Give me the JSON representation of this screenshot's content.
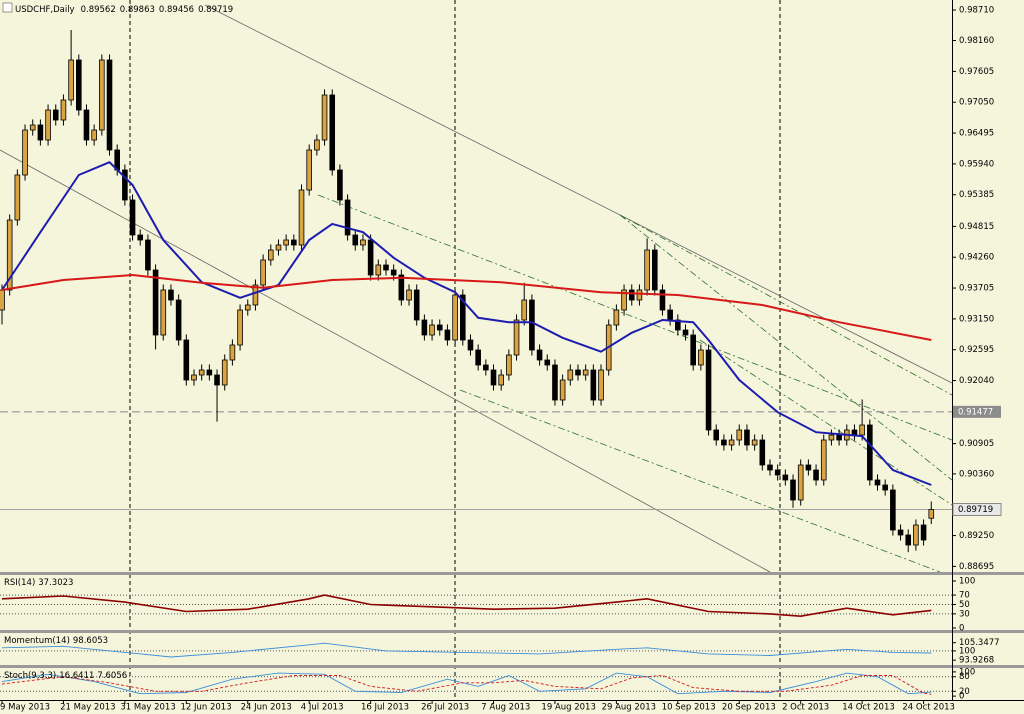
{
  "chart_data": {
    "type": "candlestick",
    "title": "USDCHF,Daily",
    "up_color": "#d9a441",
    "down_color": "#000000",
    "open": [
      0.9331,
      0.9367,
      0.9493,
      0.9574,
      0.9655,
      0.9664,
      0.9637,
      0.9691,
      0.9673,
      0.9709,
      0.9781,
      0.9691,
      0.9637,
      0.9655,
      0.9781,
      0.9619,
      0.9583,
      0.9529,
      0.9466,
      0.9457,
      0.9403,
      0.9286,
      0.9367,
      0.9349,
      0.9277,
      0.9205,
      0.9214,
      0.9223,
      0.9214,
      0.9196,
      0.9241,
      0.9268,
      0.9331,
      0.934,
      0.9376,
      0.9421,
      0.9439,
      0.9448,
      0.9457,
      0.9448,
      0.9547,
      0.9619,
      0.9637,
      0.9718,
      0.9583,
      0.9529,
      0.9466,
      0.9448,
      0.9457,
      0.9394,
      0.9412,
      0.9403,
      0.9394,
      0.9349,
      0.9367,
      0.9313,
      0.9286,
      0.9304,
      0.9295,
      0.9277,
      0.9358,
      0.9277,
      0.9259,
      0.9232,
      0.9223,
      0.9196,
      0.9214,
      0.925,
      0.9313,
      0.9349,
      0.9259,
      0.9241,
      0.9232,
      0.9169,
      0.9205,
      0.9223,
      0.9214,
      0.9223,
      0.9169,
      0.9223,
      0.9304,
      0.9331,
      0.9367,
      0.9349,
      0.9367,
      0.9439,
      0.9367,
      0.9331,
      0.9313,
      0.9295,
      0.9286,
      0.9232,
      0.9259,
      0.9115,
      0.9097,
      0.9088,
      0.9097,
      0.9115,
      0.9088,
      0.9097,
      0.9052,
      0.9043,
      0.9034,
      0.9025,
      0.8989,
      0.9052,
      0.9043,
      0.9025,
      0.9097,
      0.9106,
      0.9097,
      0.9115,
      0.9106,
      0.9124,
      0.9025,
      0.9016,
      0.9007,
      0.8935,
      0.8926,
      0.8908,
      0.8944,
      0.89562
    ],
    "high": [
      0.9377,
      0.9503,
      0.9584,
      0.9665,
      0.9674,
      0.9674,
      0.9701,
      0.9701,
      0.9719,
      0.9835,
      0.9791,
      0.9701,
      0.9665,
      0.9791,
      0.9791,
      0.9629,
      0.9593,
      0.9539,
      0.9476,
      0.9467,
      0.9413,
      0.9377,
      0.9377,
      0.9359,
      0.9287,
      0.9224,
      0.9233,
      0.9233,
      0.9224,
      0.9251,
      0.9278,
      0.9341,
      0.935,
      0.9386,
      0.9431,
      0.9449,
      0.9458,
      0.9467,
      0.9467,
      0.9557,
      0.9629,
      0.9647,
      0.9728,
      0.9728,
      0.9593,
      0.9539,
      0.9476,
      0.9467,
      0.9467,
      0.9422,
      0.9422,
      0.9413,
      0.9404,
      0.9377,
      0.9377,
      0.9323,
      0.9314,
      0.9314,
      0.9305,
      0.9368,
      0.9368,
      0.9287,
      0.9269,
      0.9242,
      0.9233,
      0.9224,
      0.926,
      0.9323,
      0.938,
      0.9359,
      0.9269,
      0.9251,
      0.9242,
      0.9215,
      0.9233,
      0.9233,
      0.9233,
      0.9233,
      0.9233,
      0.9314,
      0.9341,
      0.9377,
      0.9377,
      0.9377,
      0.946,
      0.9449,
      0.9377,
      0.9341,
      0.9323,
      0.9305,
      0.9296,
      0.9269,
      0.9269,
      0.9125,
      0.9107,
      0.9107,
      0.9125,
      0.9125,
      0.9107,
      0.9107,
      0.9062,
      0.9053,
      0.9044,
      0.9035,
      0.9062,
      0.9062,
      0.9053,
      0.9107,
      0.9116,
      0.9116,
      0.9125,
      0.9125,
      0.917,
      0.9134,
      0.9035,
      0.9026,
      0.9017,
      0.8945,
      0.8936,
      0.8954,
      0.8954,
      0.89863
    ],
    "low": [
      0.9305,
      0.9357,
      0.9483,
      0.9564,
      0.9645,
      0.9627,
      0.9627,
      0.9663,
      0.9663,
      0.9699,
      0.9681,
      0.9627,
      0.9627,
      0.9645,
      0.9609,
      0.9573,
      0.9519,
      0.9456,
      0.9447,
      0.9393,
      0.926,
      0.9276,
      0.9339,
      0.9267,
      0.9195,
      0.9195,
      0.9204,
      0.9204,
      0.913,
      0.9186,
      0.9231,
      0.9258,
      0.9321,
      0.933,
      0.9366,
      0.9411,
      0.9429,
      0.9438,
      0.9438,
      0.9438,
      0.9537,
      0.9609,
      0.9627,
      0.9573,
      0.9519,
      0.9456,
      0.9438,
      0.9438,
      0.9384,
      0.9384,
      0.9393,
      0.9384,
      0.9339,
      0.9339,
      0.9303,
      0.9276,
      0.9276,
      0.9285,
      0.9267,
      0.9267,
      0.9267,
      0.9249,
      0.9222,
      0.9213,
      0.9186,
      0.9186,
      0.9204,
      0.924,
      0.9303,
      0.9249,
      0.9231,
      0.9222,
      0.9159,
      0.9159,
      0.9195,
      0.9204,
      0.9204,
      0.9159,
      0.9159,
      0.9213,
      0.9294,
      0.9321,
      0.9339,
      0.9339,
      0.9357,
      0.9357,
      0.9321,
      0.9303,
      0.9285,
      0.9276,
      0.9222,
      0.9222,
      0.9105,
      0.9087,
      0.9078,
      0.9078,
      0.9087,
      0.9078,
      0.9078,
      0.9042,
      0.9033,
      0.9024,
      0.9015,
      0.8975,
      0.8979,
      0.9033,
      0.9015,
      0.9015,
      0.9087,
      0.9087,
      0.9087,
      0.9096,
      0.9096,
      0.9015,
      0.9006,
      0.8997,
      0.8925,
      0.8916,
      0.8895,
      0.8898,
      0.8907,
      0.89456
    ],
    "close": [
      0.9367,
      0.9493,
      0.9574,
      0.9655,
      0.9664,
      0.9637,
      0.9691,
      0.9673,
      0.9709,
      0.9781,
      0.9691,
      0.9637,
      0.9655,
      0.9781,
      0.9619,
      0.9583,
      0.9529,
      0.9466,
      0.9457,
      0.9403,
      0.9286,
      0.9367,
      0.9349,
      0.9277,
      0.9205,
      0.9214,
      0.9223,
      0.9214,
      0.9196,
      0.9241,
      0.9268,
      0.9331,
      0.934,
      0.9376,
      0.9421,
      0.9439,
      0.9448,
      0.9457,
      0.9448,
      0.9547,
      0.9619,
      0.9637,
      0.9718,
      0.9583,
      0.9529,
      0.9466,
      0.9448,
      0.9457,
      0.9394,
      0.9412,
      0.9403,
      0.9394,
      0.9349,
      0.9367,
      0.9313,
      0.9286,
      0.9304,
      0.9295,
      0.9277,
      0.9358,
      0.9277,
      0.9259,
      0.9232,
      0.9223,
      0.9196,
      0.9214,
      0.925,
      0.9313,
      0.9349,
      0.9259,
      0.9241,
      0.9232,
      0.9169,
      0.9205,
      0.9223,
      0.9214,
      0.9223,
      0.9169,
      0.9223,
      0.9304,
      0.9331,
      0.9367,
      0.9349,
      0.9367,
      0.9439,
      0.9367,
      0.9331,
      0.9313,
      0.9295,
      0.9286,
      0.9232,
      0.9259,
      0.9115,
      0.9097,
      0.9088,
      0.9097,
      0.9115,
      0.9088,
      0.9097,
      0.9052,
      0.9043,
      0.9034,
      0.9025,
      0.8989,
      0.9052,
      0.9043,
      0.9025,
      0.9097,
      0.9106,
      0.9097,
      0.9115,
      0.9106,
      0.9124,
      0.9025,
      0.9016,
      0.9007,
      0.8935,
      0.8926,
      0.8908,
      0.8944,
      0.8917,
      0.89719
    ],
    "xlim": [
      -0.26,
      123.7
    ],
    "ylim": [
      0.88594,
      0.9889
    ],
    "yticks": [
      {
        "value": 0.9871,
        "label": "0.98710"
      },
      {
        "value": 0.9816,
        "label": "0.98160"
      },
      0.97605,
      {
        "value": 0.9705,
        "label": "0.97050"
      },
      0.96495,
      {
        "value": 0.9594,
        "label": "0.95940"
      },
      0.95385,
      0.94815,
      {
        "value": 0.9426,
        "label": "0.94260"
      },
      0.93705,
      {
        "value": 0.9315,
        "label": "0.93150"
      },
      0.92595,
      {
        "value": 0.9204,
        "label": "0.92040"
      },
      0.90905,
      {
        "value": 0.9036,
        "label": "0.90360"
      },
      {
        "value": 0.8925,
        "label": "0.89250"
      },
      0.88695
    ],
    "xticks": [
      {
        "value": 0,
        "label": "9 May 2013"
      },
      {
        "value": 8,
        "label": "21 May 2013"
      },
      {
        "value": 16,
        "label": "31 May 2013"
      },
      {
        "value": 24,
        "label": "12 Jun 2013"
      },
      {
        "value": 32,
        "label": "24 Jun 2013"
      },
      {
        "value": 40,
        "label": "4 Jul 2013"
      },
      {
        "value": 48,
        "label": "16 Jul 2013"
      },
      {
        "value": 56,
        "label": "26 Jul 2013"
      },
      {
        "value": 64,
        "label": "7 Aug 2013"
      },
      {
        "value": 72,
        "label": "19 Aug 2013"
      },
      {
        "value": 80,
        "label": "29 Aug 2013"
      },
      {
        "value": 88,
        "label": "10 Sep 2013"
      },
      {
        "value": 96,
        "label": "20 Sep 2013"
      },
      {
        "value": 104,
        "label": "2 Oct 2013"
      },
      {
        "value": 112,
        "label": "14 Oct 2013"
      },
      {
        "value": 120,
        "label": "24 Oct 2013"
      }
    ],
    "level": 0.91477,
    "overlays": [
      {
        "color": "#1c1cb0",
        "x": [
          0,
          5,
          10,
          14,
          17,
          21,
          26,
          31,
          36,
          40,
          43,
          47,
          51,
          55,
          59,
          62,
          66,
          69,
          73,
          78,
          82,
          86,
          90,
          92,
          96,
          101,
          106,
          112,
          116,
          121
        ],
        "values": [
          0.9367,
          0.9471,
          0.9574,
          0.9597,
          0.9556,
          0.9457,
          0.9381,
          0.9353,
          0.9376,
          0.9457,
          0.9486,
          0.9471,
          0.9425,
          0.9389,
          0.9363,
          0.9317,
          0.9309,
          0.9309,
          0.9281,
          0.9256,
          0.929,
          0.9313,
          0.9309,
          0.9277,
          0.9205,
          0.9147,
          0.9111,
          0.9104,
          0.9043,
          0.9016
        ]
      },
      {
        "color": "#d81818",
        "x": [
          0,
          8,
          17,
          26,
          34,
          43,
          52,
          65,
          78,
          88,
          99,
          109,
          121
        ],
        "values": [
          0.9367,
          0.9385,
          0.9394,
          0.938,
          0.9371,
          0.9385,
          0.9389,
          0.9381,
          0.9363,
          0.9358,
          0.934,
          0.9309,
          0.9277
        ]
      }
    ],
    "indicators": [
      {
        "title": "RSI(14)",
        "ylim": [
          -4.3,
          110.6
        ],
        "yticks": [
          100,
          70,
          50,
          30,
          0
        ],
        "levels": [
          70,
          50,
          30
        ],
        "series": [
          {
            "color": "#8b0000",
            "x": [
              0,
              8,
              16,
              24,
              32,
              40,
              42,
              48,
              56,
              64,
              72,
              80,
              84,
              92,
              100,
              104,
              110,
              116,
              121
            ],
            "values": [
              62,
              68,
              55,
              35,
              40,
              62,
              70,
              50,
              45,
              40,
              42,
              55,
              62,
              35,
              30,
              25,
              42,
              28,
              37.3023
            ]
          }
        ]
      },
      {
        "title": "Momentum(14)",
        "ylim": [
          90.76,
          111.69
        ],
        "yticks": [
          105.3477,
          100,
          93.9268
        ],
        "levels": [
          100
        ],
        "series": [
          {
            "color": "#3a8fd8",
            "x": [
              0,
              8,
              16,
              22,
              30,
              40,
              42,
              50,
              60,
              70,
              80,
              84,
              92,
              100,
              110,
              116,
              121
            ],
            "values": [
              102,
              103,
              99,
              96,
              99,
              104,
              105,
              100,
              99,
              98,
              101,
              102,
              98,
              97,
              101,
              99,
              98.6053
            ]
          }
        ]
      },
      {
        "title": "Stoch(9,3,3)",
        "ylim": [
          -16,
          116
        ],
        "yticks": [
          100,
          80,
          20,
          0
        ],
        "levels": [
          80,
          20
        ],
        "series": [
          {
            "color": "#3a8fd8",
            "x": [
              0,
              6,
              12,
              18,
              24,
              30,
              36,
              42,
              46,
              52,
              58,
              62,
              66,
              70,
              76,
              80,
              84,
              88,
              94,
              100,
              106,
              110,
              114,
              118,
              121
            ],
            "values": [
              60,
              90,
              60,
              10,
              15,
              70,
              95,
              90,
              20,
              15,
              70,
              40,
              85,
              20,
              30,
              95,
              80,
              10,
              20,
              15,
              60,
              95,
              80,
              10,
              16.6411
            ]
          },
          {
            "color": "#d81818",
            "dashed": true,
            "x": [
              0,
              8,
              14,
              20,
              26,
              32,
              38,
              44,
              48,
              54,
              60,
              64,
              68,
              72,
              78,
              82,
              86,
              90,
              96,
              102,
              108,
              112,
              116,
              120,
              121
            ],
            "values": [
              50,
              80,
              55,
              20,
              20,
              55,
              85,
              85,
              40,
              20,
              55,
              55,
              65,
              40,
              30,
              75,
              85,
              35,
              20,
              20,
              45,
              85,
              85,
              12,
              7.6056
            ]
          }
        ]
      }
    ]
  }
}
